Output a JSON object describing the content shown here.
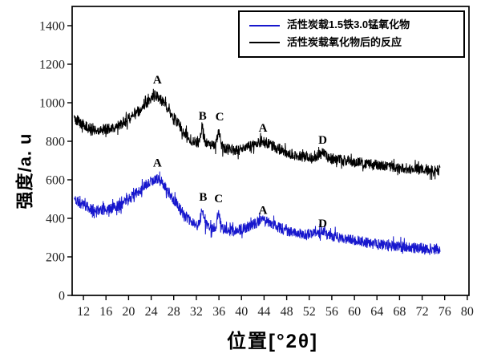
{
  "chart_data": {
    "type": "line",
    "title": "",
    "xlabel": "位置[°2θ]",
    "ylabel": "强度/a. u",
    "xlim": [
      10,
      80.3
    ],
    "ylim": [
      0,
      1500
    ],
    "grid": false,
    "legend_position": "top-right",
    "x_ticks": [
      12,
      16,
      20,
      24,
      28,
      32,
      36,
      40,
      44,
      48,
      52,
      56,
      60,
      64,
      68,
      72,
      76,
      80
    ],
    "y_ticks": [
      0,
      200,
      400,
      600,
      800,
      1000,
      1200,
      1400
    ],
    "series": [
      {
        "name": "活性炭载1.5铁3.0锰氧化物",
        "color": "#1717cd",
        "noise_amplitude": 28,
        "seed": 11,
        "x_range": [
          10.35,
          75.2
        ],
        "anchors": [
          [
            10.35,
            500
          ],
          [
            11.5,
            478
          ],
          [
            13,
            452
          ],
          [
            15,
            440
          ],
          [
            17,
            450
          ],
          [
            19,
            478
          ],
          [
            21,
            522
          ],
          [
            22.5,
            560
          ],
          [
            23.8,
            590
          ],
          [
            24.8,
            605
          ],
          [
            25.6,
            592
          ],
          [
            26.8,
            548
          ],
          [
            28,
            498
          ],
          [
            29.5,
            432
          ],
          [
            31,
            382
          ],
          [
            32.2,
            362
          ],
          [
            32.6,
            372
          ],
          [
            33.05,
            465
          ],
          [
            33.5,
            372
          ],
          [
            34.2,
            352
          ],
          [
            35.4,
            348
          ],
          [
            35.95,
            442
          ],
          [
            36.5,
            348
          ],
          [
            37.5,
            338
          ],
          [
            39,
            336
          ],
          [
            41,
            352
          ],
          [
            42.5,
            372
          ],
          [
            43.7,
            392
          ],
          [
            44.8,
            382
          ],
          [
            46,
            360
          ],
          [
            47.5,
            342
          ],
          [
            49,
            328
          ],
          [
            51,
            318
          ],
          [
            53,
            318
          ],
          [
            54.3,
            340
          ],
          [
            55.3,
            312
          ],
          [
            57,
            302
          ],
          [
            59,
            290
          ],
          [
            61,
            280
          ],
          [
            63,
            270
          ],
          [
            65,
            262
          ],
          [
            67.5,
            255
          ],
          [
            70,
            248
          ],
          [
            72.5,
            244
          ],
          [
            75.2,
            242
          ]
        ]
      },
      {
        "name": "活性炭载氧化物后的反应",
        "color": "#000000",
        "noise_amplitude": 28,
        "seed": 5,
        "x_range": [
          10.35,
          75.2
        ],
        "anchors": [
          [
            10.35,
            920
          ],
          [
            11.5,
            895
          ],
          [
            13,
            868
          ],
          [
            15,
            858
          ],
          [
            17,
            868
          ],
          [
            19,
            893
          ],
          [
            21,
            935
          ],
          [
            22.5,
            975
          ],
          [
            23.8,
            1015
          ],
          [
            24.8,
            1038
          ],
          [
            25.6,
            1020
          ],
          [
            26.8,
            975
          ],
          [
            28,
            925
          ],
          [
            29.5,
            860
          ],
          [
            31,
            808
          ],
          [
            32.2,
            790
          ],
          [
            32.6,
            800
          ],
          [
            33.05,
            885
          ],
          [
            33.5,
            800
          ],
          [
            34.2,
            780
          ],
          [
            35.4,
            775
          ],
          [
            35.95,
            858
          ],
          [
            36.5,
            772
          ],
          [
            37.5,
            758
          ],
          [
            39,
            752
          ],
          [
            41,
            768
          ],
          [
            42.5,
            785
          ],
          [
            43.7,
            800
          ],
          [
            44.8,
            788
          ],
          [
            46,
            768
          ],
          [
            47.5,
            748
          ],
          [
            49,
            732
          ],
          [
            51,
            718
          ],
          [
            53,
            718
          ],
          [
            54.3,
            740
          ],
          [
            55.3,
            715
          ],
          [
            57,
            705
          ],
          [
            59,
            697
          ],
          [
            61,
            690
          ],
          [
            63,
            680
          ],
          [
            65,
            672
          ],
          [
            67.5,
            665
          ],
          [
            70,
            658
          ],
          [
            72.5,
            652
          ],
          [
            75.2,
            648
          ]
        ]
      }
    ],
    "annotations": [
      {
        "text": "A",
        "x": 25.1,
        "y": 1100
      },
      {
        "text": "B",
        "x": 33.1,
        "y": 912
      },
      {
        "text": "C",
        "x": 36.15,
        "y": 908
      },
      {
        "text": "A",
        "x": 43.8,
        "y": 850
      },
      {
        "text": "D",
        "x": 54.4,
        "y": 787
      },
      {
        "text": "A",
        "x": 25.1,
        "y": 668
      },
      {
        "text": "B",
        "x": 33.2,
        "y": 492
      },
      {
        "text": "C",
        "x": 35.95,
        "y": 483
      },
      {
        "text": "A",
        "x": 43.8,
        "y": 422
      },
      {
        "text": "D",
        "x": 54.4,
        "y": 355
      }
    ],
    "axis_color": "#000000",
    "tick_label_color": "#1f1f1f"
  }
}
